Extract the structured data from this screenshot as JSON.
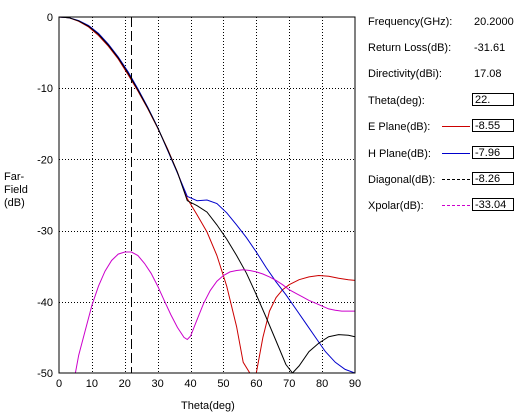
{
  "info_panel": {
    "frequency": {
      "label": "Frequency(GHz):",
      "value": "20.2000"
    },
    "return_loss": {
      "label": "Return Loss(dB):",
      "value": "-31.61"
    },
    "directivity": {
      "label": "Directivity(dBi):",
      "value": "17.08"
    },
    "theta": {
      "label": "Theta(deg):",
      "value": "22."
    },
    "e_plane": {
      "label": "E Plane(dB):",
      "value": "-8.55",
      "color": "#cc0000"
    },
    "h_plane": {
      "label": "H Plane(dB):",
      "value": "-7.96",
      "color": "#0000cc"
    },
    "diagonal": {
      "label": "Diagonal(dB):",
      "value": "-8.26",
      "color": "#000000"
    },
    "xpolar": {
      "label": "Xpolar(dB):",
      "value": "-33.04",
      "color": "#cc00cc"
    }
  },
  "chart_data": {
    "type": "line",
    "xlabel": "Theta(deg)",
    "ylabel_lines": [
      "Far-",
      "Field",
      "(dB)"
    ],
    "xlim": [
      0,
      90
    ],
    "ylim": [
      -50,
      0
    ],
    "xticks": [
      0,
      10,
      20,
      30,
      40,
      50,
      60,
      70,
      80,
      90
    ],
    "yticks": [
      0,
      -10,
      -20,
      -30,
      -40,
      -50
    ],
    "grid": true,
    "cursor_theta": 22,
    "series": [
      {
        "name": "E Plane",
        "color": "#cc0000",
        "dash": "",
        "x": [
          0,
          3,
          6,
          9,
          12,
          15,
          18,
          21,
          24,
          27,
          30,
          33,
          36,
          39,
          42,
          45,
          48,
          51,
          54,
          56,
          58,
          60,
          62,
          64,
          66,
          68,
          70,
          73,
          76,
          79,
          82,
          85,
          88,
          90
        ],
        "y": [
          0,
          -0.1,
          -0.6,
          -1.4,
          -2.6,
          -4.1,
          -5.9,
          -8.1,
          -10.4,
          -12.9,
          -15.6,
          -18.5,
          -21.8,
          -25.5,
          -27.8,
          -30.2,
          -33.5,
          -37.8,
          -43.5,
          -48.5,
          -50,
          -50,
          -45,
          -41.3,
          -39.4,
          -38.3,
          -37.6,
          -36.9,
          -36.5,
          -36.3,
          -36.4,
          -36.7,
          -36.9,
          -37.0
        ]
      },
      {
        "name": "H Plane",
        "color": "#0000cc",
        "dash": "",
        "x": [
          0,
          3,
          6,
          9,
          12,
          15,
          18,
          21,
          24,
          27,
          30,
          33,
          36,
          39,
          42,
          45,
          48,
          51,
          54,
          57,
          60,
          63,
          66,
          69,
          72,
          75,
          78,
          81,
          84,
          87,
          90
        ],
        "y": [
          0,
          -0.1,
          -0.5,
          -1.2,
          -2.3,
          -3.8,
          -5.6,
          -7.7,
          -10.1,
          -12.7,
          -15.5,
          -18.7,
          -21.9,
          -25.2,
          -25.8,
          -25.7,
          -26.2,
          -27.5,
          -29.2,
          -31.0,
          -33.0,
          -35.2,
          -37.2,
          -39.0,
          -41.0,
          -43.0,
          -45.0,
          -47.0,
          -48.5,
          -49.5,
          -50
        ]
      },
      {
        "name": "Diagonal",
        "color": "#000000",
        "dash": "",
        "x": [
          0,
          3,
          6,
          9,
          12,
          15,
          18,
          21,
          24,
          27,
          30,
          33,
          36,
          39,
          42,
          45,
          48,
          51,
          54,
          57,
          60,
          63,
          66,
          69,
          71,
          73,
          76,
          79,
          82,
          85,
          88,
          90
        ],
        "y": [
          0,
          -0.1,
          -0.55,
          -1.3,
          -2.45,
          -3.95,
          -5.75,
          -7.9,
          -10.25,
          -12.8,
          -15.55,
          -18.6,
          -21.8,
          -25.8,
          -26.5,
          -27.4,
          -29.2,
          -31.2,
          -33.5,
          -36.0,
          -39.0,
          -42.2,
          -45.5,
          -48.8,
          -50,
          -49.0,
          -47.0,
          -45.8,
          -44.9,
          -44.6,
          -44.7,
          -44.9
        ]
      },
      {
        "name": "Xpolar",
        "color": "#cc00cc",
        "dash": "",
        "x": [
          5,
          6,
          8,
          10,
          12,
          14,
          16,
          18,
          20,
          22,
          24,
          26,
          28,
          30,
          32,
          34,
          36,
          38,
          39,
          40,
          42,
          44,
          46,
          48,
          50,
          52,
          54,
          56,
          58,
          60,
          62,
          64,
          66,
          68,
          70,
          72,
          74,
          76,
          78,
          80,
          82,
          84,
          86,
          88,
          90
        ],
        "y": [
          -50,
          -47.5,
          -44.0,
          -40.5,
          -37.8,
          -35.7,
          -34.2,
          -33.3,
          -33.0,
          -33.0,
          -33.5,
          -34.6,
          -36.0,
          -37.8,
          -39.8,
          -41.8,
          -43.6,
          -45.0,
          -45.3,
          -44.8,
          -42.5,
          -40.2,
          -38.4,
          -37.1,
          -36.3,
          -35.8,
          -35.6,
          -35.5,
          -35.6,
          -35.8,
          -36.1,
          -36.5,
          -37.0,
          -37.6,
          -38.3,
          -38.8,
          -39.3,
          -39.8,
          -40.2,
          -40.6,
          -41.0,
          -41.2,
          -41.3,
          -41.3,
          -41.3
        ]
      }
    ]
  }
}
